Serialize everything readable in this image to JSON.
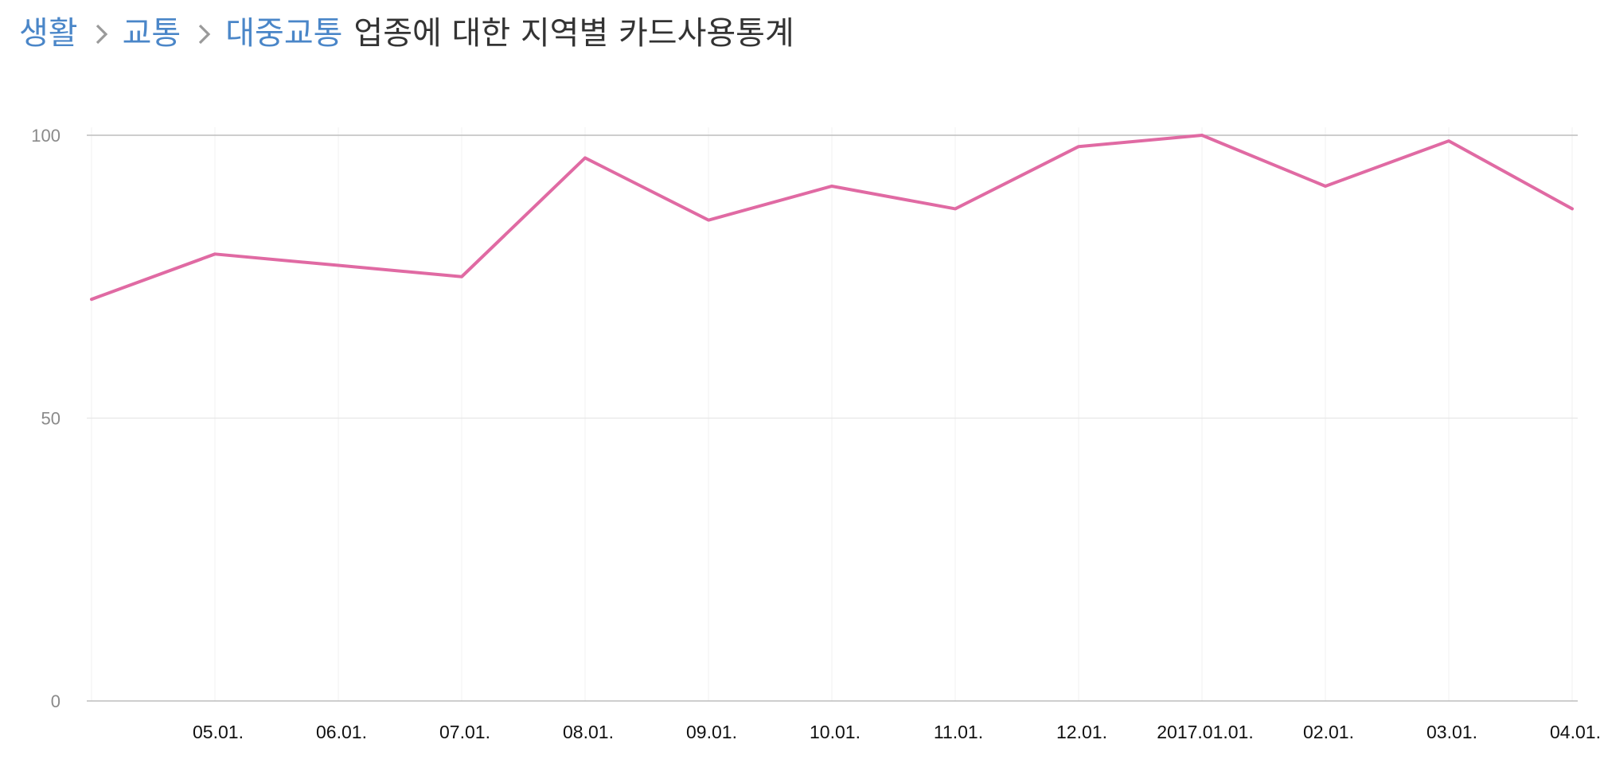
{
  "breadcrumb": {
    "items": [
      "생활",
      "교통",
      "대중교통"
    ],
    "current": "업종에 대한 지역별 카드사용통계"
  },
  "colors": {
    "line": "#e06aa3",
    "link": "#4a86c8",
    "grid": "#e6e6e6",
    "baseline": "#bdbdbd"
  },
  "chart_data": {
    "type": "line",
    "x": [
      "",
      "05.01.",
      "06.01.",
      "07.01.",
      "08.01.",
      "09.01.",
      "10.01.",
      "11.01.",
      "12.01.",
      "2017.01.01.",
      "02.01.",
      "03.01.",
      "04.01."
    ],
    "series": [
      {
        "values": [
          71,
          79,
          77,
          75,
          96,
          85,
          91,
          87,
          98,
          100,
          91,
          99,
          87
        ]
      }
    ],
    "yticks": [
      0,
      50,
      100
    ],
    "ylim": [
      0,
      100
    ],
    "grid": true,
    "title": "",
    "xlabel": "",
    "ylabel": ""
  }
}
